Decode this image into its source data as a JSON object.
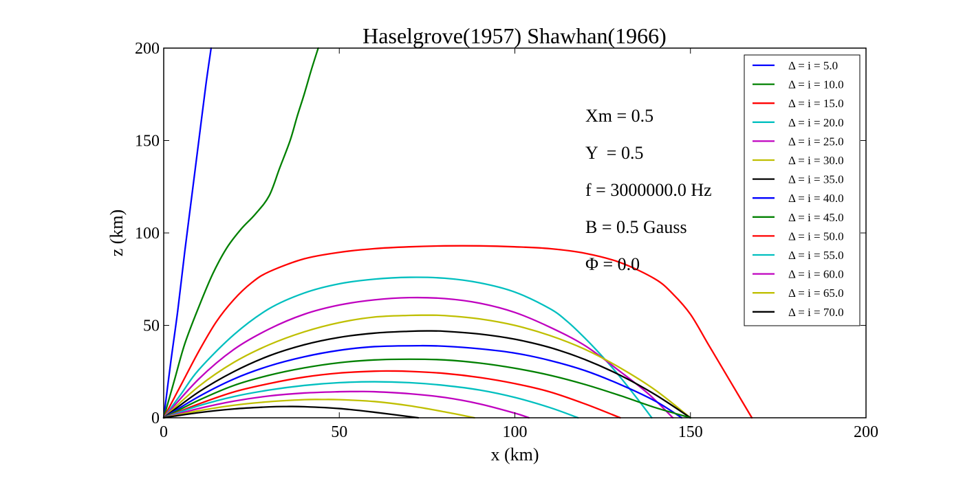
{
  "chart_data": {
    "type": "line",
    "title": "Haselgrove(1957) Shawhan(1966)",
    "xlabel": "x (km)",
    "ylabel": "z (km)",
    "xlim": [
      0,
      200
    ],
    "ylim": [
      0,
      200
    ],
    "xticks": [
      "0",
      "50",
      "100",
      "150",
      "200"
    ],
    "yticks": [
      "0",
      "50",
      "100",
      "150",
      "200"
    ],
    "grid": false,
    "legend_position": "top-right",
    "annotations": [
      "Xm = 0.5",
      "Y  = 0.5",
      "f = 3000000.0 Hz",
      "B = 0.5 Gauss",
      "Φ = 0.0"
    ],
    "series": [
      {
        "name": "Δ = i = 5.0",
        "color": "#0000ff",
        "x": [
          0,
          2,
          4,
          6,
          8,
          10,
          12,
          13.5
        ],
        "y": [
          0,
          30,
          58,
          90,
          120,
          150,
          180,
          200
        ]
      },
      {
        "name": "Δ = i = 10.0",
        "color": "#008000",
        "x": [
          0,
          3,
          6,
          10,
          14,
          18,
          22,
          26,
          30,
          33,
          36,
          38,
          40,
          42,
          44
        ],
        "y": [
          0,
          20,
          40,
          60,
          78,
          92,
          102,
          110,
          120,
          135,
          150,
          163,
          175,
          188,
          200
        ]
      },
      {
        "name": "Δ = i = 15.0",
        "color": "#ff0000",
        "x": [
          0,
          5,
          10,
          15,
          20,
          25,
          30,
          40,
          50,
          60,
          70,
          80,
          90,
          100,
          110,
          120,
          130,
          140,
          145,
          150,
          155,
          160,
          165,
          167.5
        ],
        "y": [
          0,
          18,
          36,
          52,
          64,
          73,
          79,
          86,
          89.5,
          91.5,
          92.5,
          93,
          93,
          92.5,
          91.5,
          89,
          84,
          75,
          67,
          56,
          40,
          24,
          8,
          0
        ]
      },
      {
        "name": "Δ = i = 20.0",
        "color": "#00bfbf",
        "x": [
          0,
          5,
          10,
          20,
          30,
          40,
          50,
          60,
          70,
          80,
          90,
          100,
          110,
          115,
          120,
          125,
          130,
          135,
          139
        ],
        "y": [
          0,
          13,
          26,
          45,
          59,
          67.5,
          72.5,
          75,
          76,
          75.5,
          73,
          68,
          59,
          52,
          43,
          33,
          22,
          10,
          0
        ]
      },
      {
        "name": "Δ = i = 25.0",
        "color": "#bf00bf",
        "x": [
          0,
          10,
          20,
          30,
          40,
          50,
          60,
          70,
          80,
          90,
          100,
          110,
          120,
          130,
          138,
          145
        ],
        "y": [
          0,
          21,
          37,
          48,
          56,
          61,
          63.8,
          65,
          64.5,
          62,
          57,
          49,
          39,
          25,
          13,
          0
        ]
      },
      {
        "name": "Δ = i = 30.0",
        "color": "#bfbf00",
        "x": [
          0,
          10,
          20,
          30,
          40,
          50,
          60,
          70,
          75,
          80,
          90,
          100,
          110,
          120,
          130,
          140,
          150
        ],
        "y": [
          0,
          17,
          30,
          39.5,
          46.5,
          51.5,
          54.5,
          55.4,
          55.5,
          55.3,
          53.5,
          50,
          44.5,
          37,
          27,
          15,
          0
        ]
      },
      {
        "name": "Δ = i = 35.0",
        "color": "#000000",
        "x": [
          0,
          10,
          20,
          30,
          40,
          50,
          60,
          70,
          75,
          80,
          90,
          100,
          110,
          120,
          130,
          140,
          150
        ],
        "y": [
          0,
          14,
          25,
          33.5,
          39.5,
          43.5,
          45.8,
          46.8,
          47,
          46.8,
          45.3,
          42.5,
          38,
          31.5,
          23,
          12.5,
          0
        ]
      },
      {
        "name": "Δ = i = 40.0",
        "color": "#0000ff",
        "x": [
          0,
          10,
          20,
          30,
          40,
          50,
          60,
          73,
          80,
          90,
          100,
          110,
          120,
          130,
          140,
          147.5
        ],
        "y": [
          0,
          11.5,
          21,
          28,
          33,
          36.5,
          38.5,
          39,
          38.7,
          37.3,
          35,
          31,
          25.5,
          18,
          9,
          0
        ]
      },
      {
        "name": "Δ = i = 45.0",
        "color": "#008000",
        "x": [
          0,
          10,
          20,
          30,
          40,
          50,
          60,
          70,
          80,
          90,
          100,
          110,
          120,
          130,
          140,
          150
        ],
        "y": [
          0,
          9.5,
          17.5,
          23,
          27,
          29.8,
          31.3,
          31.7,
          31.3,
          29.6,
          26.8,
          23,
          18,
          12,
          5.5,
          0
        ]
      },
      {
        "name": "Δ = i = 50.0",
        "color": "#ff0000",
        "x": [
          0,
          10,
          20,
          30,
          40,
          50,
          60,
          65,
          70,
          80,
          90,
          100,
          110,
          120,
          130
        ],
        "y": [
          0,
          7.5,
          14,
          18.5,
          22,
          24.2,
          25.2,
          25.3,
          25.1,
          24,
          21.8,
          18.5,
          14,
          7.5,
          0
        ]
      },
      {
        "name": "Δ = i = 55.0",
        "color": "#00bfbf",
        "x": [
          0,
          10,
          20,
          30,
          40,
          50,
          60,
          70,
          80,
          90,
          100,
          110,
          118
        ],
        "y": [
          0,
          6.5,
          11.5,
          15,
          17.5,
          19,
          19.5,
          19,
          17.5,
          15,
          11,
          5.5,
          0
        ]
      },
      {
        "name": "Δ = i = 60.0",
        "color": "#bf00bf",
        "x": [
          0,
          10,
          20,
          30,
          40,
          50,
          55,
          60,
          70,
          80,
          90,
          100,
          104
        ],
        "y": [
          0,
          5,
          9,
          11.8,
          13.4,
          14.1,
          14.2,
          14.1,
          13,
          11,
          7.5,
          2.5,
          0
        ]
      },
      {
        "name": "Δ = i = 65.0",
        "color": "#bfbf00",
        "x": [
          0,
          10,
          20,
          30,
          40,
          45,
          50,
          60,
          70,
          80,
          88.5
        ],
        "y": [
          0,
          3.8,
          6.8,
          8.7,
          9.8,
          9.9,
          9.8,
          8.8,
          6.5,
          3.2,
          0
        ]
      },
      {
        "name": "Δ = i = 70.0",
        "color": "#000000",
        "x": [
          0,
          10,
          20,
          30,
          35,
          40,
          50,
          60,
          72.5
        ],
        "y": [
          0,
          2.8,
          4.8,
          5.9,
          6.1,
          6,
          5,
          3,
          0
        ]
      }
    ]
  }
}
